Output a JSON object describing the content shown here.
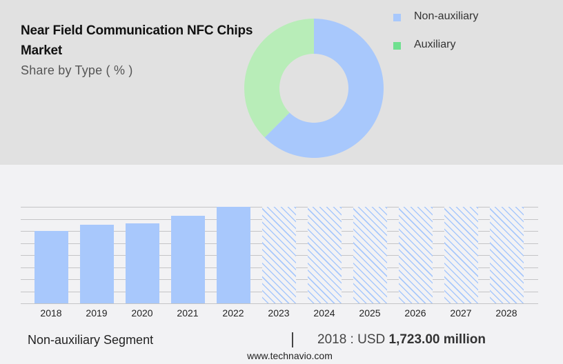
{
  "header": {
    "title": "Near Field Communication NFC Chips Market",
    "subtitle": "Share by Type ( % )"
  },
  "legend": {
    "items": [
      {
        "label": "Non-auxiliary",
        "color": "#a8c8fc"
      },
      {
        "label": "Auxiliary",
        "color": "#6fe08f"
      }
    ]
  },
  "colors": {
    "non_auxiliary": "#a8c8fc",
    "auxiliary_slice": "#b8edb8",
    "auxiliary_legend": "#6fe08f",
    "top_panel_bg": "#e1e1e1",
    "page_bg": "#f2f2f4"
  },
  "footer": {
    "segment": "Non-auxiliary Segment",
    "divider": "|",
    "value_prefix": "2018 : USD ",
    "value_bold": "1,723.00 million",
    "site": "www.technavio.com"
  },
  "chart_data": [
    {
      "type": "pie",
      "title": "Near Field Communication NFC Chips Market",
      "subtitle": "Share by Type ( % )",
      "donut": true,
      "categories": [
        "Non-auxiliary",
        "Auxiliary"
      ],
      "values": [
        62.5,
        37.5
      ],
      "colors": [
        "#a8c8fc",
        "#b8edb8"
      ],
      "legend_position": "right"
    },
    {
      "type": "bar",
      "title": "Non-auxiliary Segment",
      "categories": [
        "2018",
        "2019",
        "2020",
        "2021",
        "2022",
        "2023",
        "2024",
        "2025",
        "2026",
        "2027",
        "2028"
      ],
      "values": [
        1723.0,
        1871,
        1904,
        2084,
        2297,
        null,
        null,
        null,
        null,
        null,
        null
      ],
      "forecast": [
        false,
        false,
        false,
        false,
        false,
        true,
        true,
        true,
        true,
        true,
        true
      ],
      "unit": "USD million",
      "annotation": "2018 : USD 1,723.00 million",
      "xlabel": "",
      "ylabel": "",
      "grid": true,
      "gridlines": 9,
      "y_axis_labels": false
    }
  ]
}
